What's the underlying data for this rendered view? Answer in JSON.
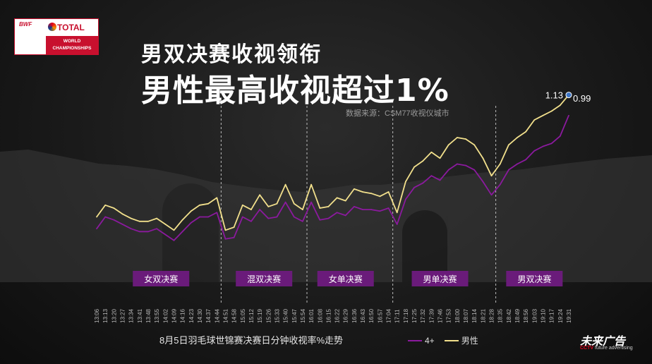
{
  "logo": {
    "bwf": "BWF",
    "total": "TOTAL",
    "wc_line1": "WORLD",
    "wc_line2": "CHAMPIONSHIPS"
  },
  "title_line1": "男双决赛收视领衔",
  "title_line2": "男性最高收视超过1%",
  "source": "数据来源：CSM77收视仪城市",
  "caption": "8月5日羽毛球世锦赛决赛日分钟收视率%走势",
  "brand": {
    "name": "未来广告",
    "sub_cctv": "CCTV",
    "sub_rest": " future advertising"
  },
  "colors": {
    "series_4plus": "#8b1a9e",
    "series_male": "#f2e08c",
    "segment_box": "#6a1b7a",
    "peak_dot": "#3b73c4"
  },
  "chart_data": {
    "type": "line",
    "xlabels": [
      "13:06",
      "13:13",
      "13:20",
      "13:27",
      "13:34",
      "13:41",
      "13:48",
      "13:55",
      "14:02",
      "14:09",
      "14:16",
      "14:23",
      "14:30",
      "14:37",
      "14:44",
      "14:51",
      "14:58",
      "15:05",
      "15:12",
      "15:19",
      "15:26",
      "15:33",
      "15:40",
      "15:47",
      "15:54",
      "16:01",
      "16:08",
      "16:15",
      "16:22",
      "16:29",
      "16:36",
      "16:43",
      "16:50",
      "16:57",
      "17:04",
      "17:11",
      "17:18",
      "17:25",
      "17:32",
      "17:39",
      "17:46",
      "17:53",
      "18:00",
      "18:07",
      "18:14",
      "18:21",
      "18:28",
      "18:35",
      "18:42",
      "18:49",
      "18:56",
      "19:03",
      "19:10",
      "19:17",
      "19:24",
      "19:31"
    ],
    "series": [
      {
        "name": "4+",
        "values": [
          0.22,
          0.3,
          0.28,
          0.25,
          0.22,
          0.2,
          0.2,
          0.22,
          0.18,
          0.14,
          0.2,
          0.26,
          0.3,
          0.3,
          0.33,
          0.15,
          0.16,
          0.3,
          0.27,
          0.35,
          0.29,
          0.3,
          0.4,
          0.3,
          0.27,
          0.4,
          0.28,
          0.29,
          0.33,
          0.31,
          0.37,
          0.35,
          0.35,
          0.34,
          0.36,
          0.25,
          0.42,
          0.5,
          0.53,
          0.58,
          0.55,
          0.62,
          0.66,
          0.65,
          0.62,
          0.54,
          0.45,
          0.52,
          0.62,
          0.66,
          0.69,
          0.75,
          0.78,
          0.8,
          0.85,
          0.99
        ]
      },
      {
        "name": "男性",
        "values": [
          0.3,
          0.38,
          0.36,
          0.32,
          0.29,
          0.27,
          0.27,
          0.29,
          0.25,
          0.21,
          0.28,
          0.34,
          0.38,
          0.39,
          0.43,
          0.21,
          0.23,
          0.38,
          0.35,
          0.45,
          0.37,
          0.39,
          0.52,
          0.39,
          0.35,
          0.52,
          0.36,
          0.37,
          0.43,
          0.41,
          0.49,
          0.47,
          0.46,
          0.44,
          0.47,
          0.33,
          0.54,
          0.64,
          0.68,
          0.74,
          0.7,
          0.79,
          0.84,
          0.83,
          0.79,
          0.7,
          0.58,
          0.66,
          0.79,
          0.84,
          0.88,
          0.96,
          0.99,
          1.02,
          1.06,
          1.13
        ]
      }
    ],
    "ylim": [
      0,
      1.2
    ],
    "segments": [
      {
        "label": "女双决赛",
        "start": 1,
        "end": 14,
        "divider": 14
      },
      {
        "label": "混双决赛",
        "start": 16,
        "end": 23,
        "divider": 24
      },
      {
        "label": "女单决赛",
        "start": 25,
        "end": 33,
        "divider": 34
      },
      {
        "label": "男单决赛",
        "start": 35,
        "end": 45,
        "divider": 46
      },
      {
        "label": "男双决赛",
        "start": 47,
        "end": 55
      }
    ],
    "annotations": [
      {
        "text": "1.13",
        "series": 1,
        "index": 55
      },
      {
        "text": "0.99",
        "series": 0,
        "index": 55
      }
    ],
    "legend_position": "bottom"
  }
}
